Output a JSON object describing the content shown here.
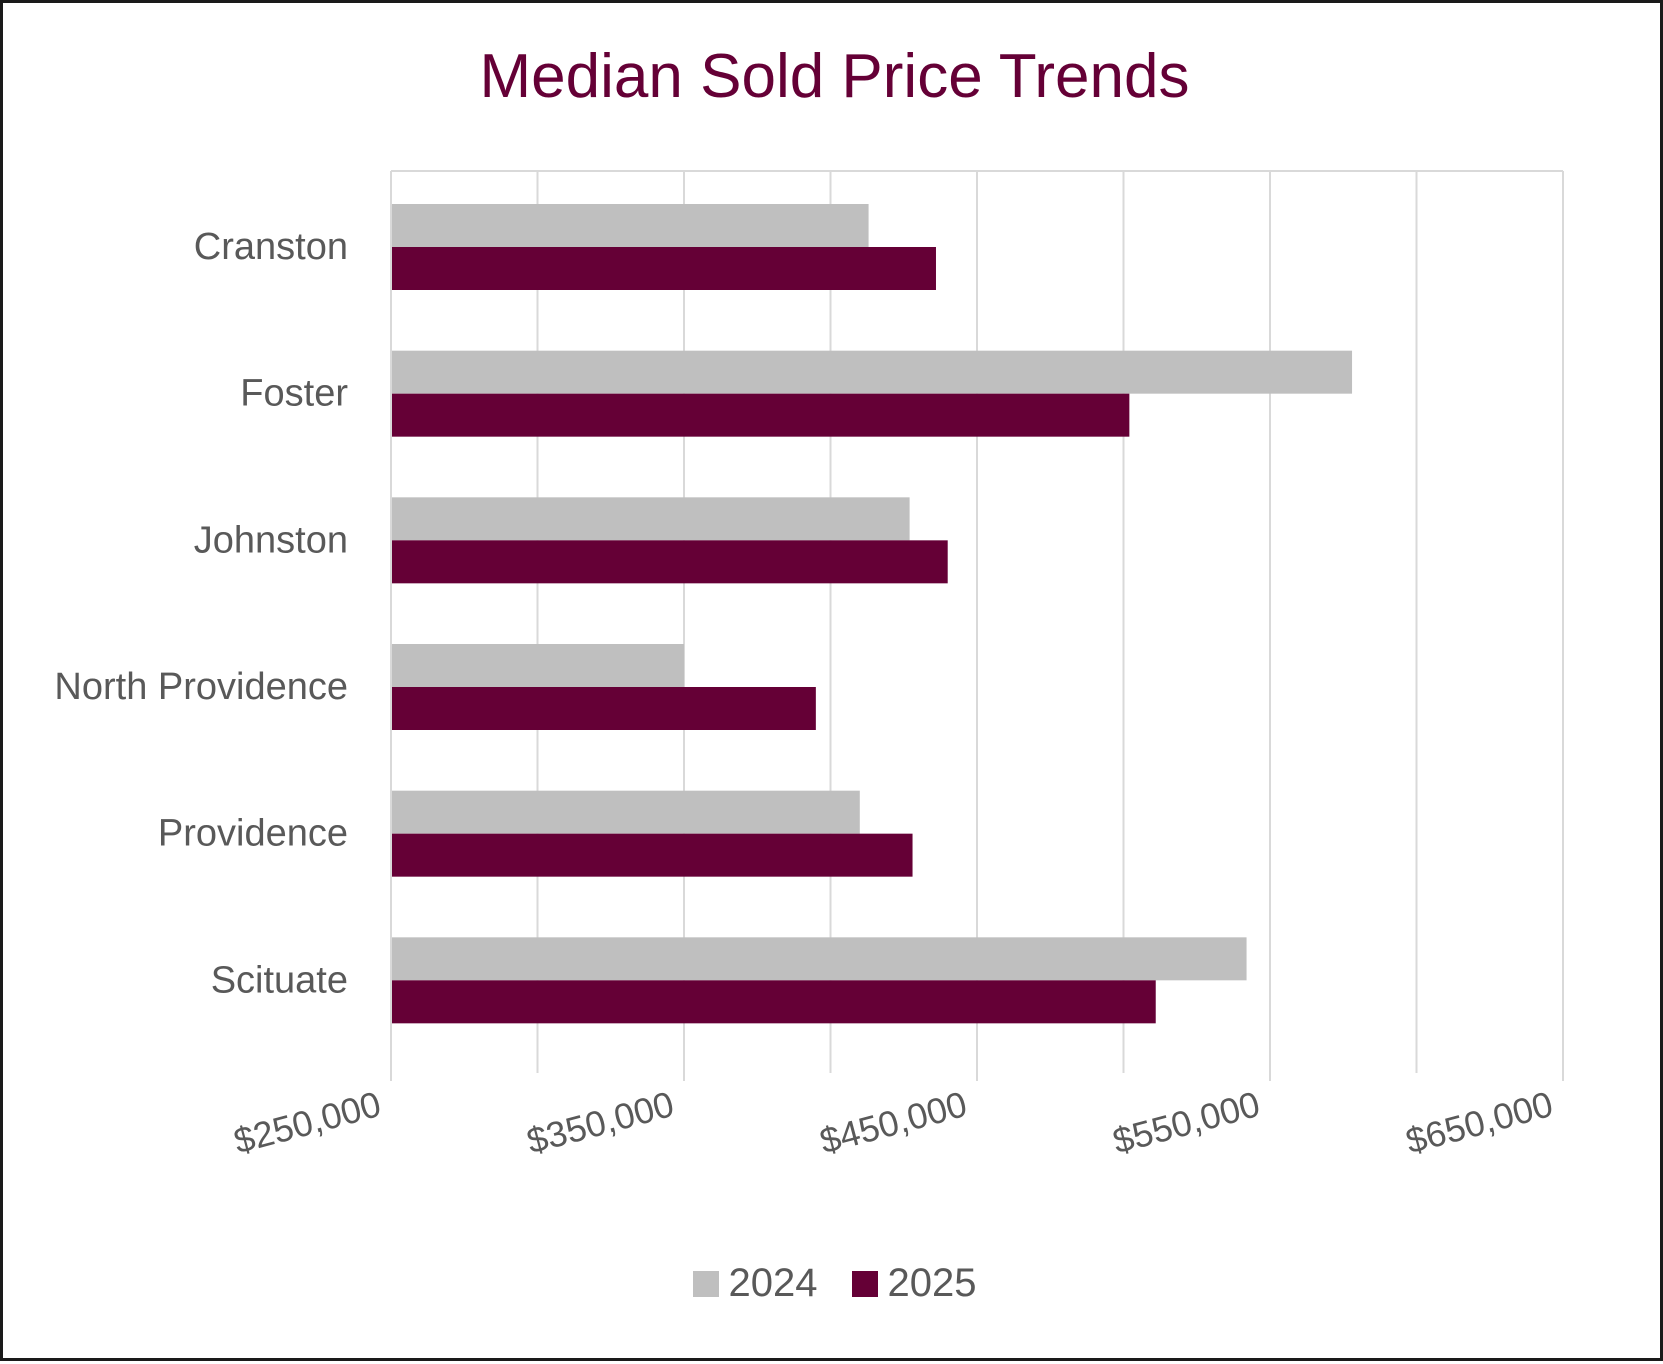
{
  "chart_data": {
    "type": "bar",
    "orientation": "horizontal",
    "title": "Median Sold Price Trends",
    "xlabel": "",
    "ylabel": "",
    "categories": [
      "Cranston",
      "Foster",
      "Johnston",
      "North Providence",
      "Providence",
      "Scituate"
    ],
    "series": [
      {
        "name": "2024",
        "color": "#bfbfbf",
        "values": [
          413000,
          578000,
          427000,
          350000,
          410000,
          542000
        ]
      },
      {
        "name": "2025",
        "color": "#650036",
        "values": [
          436000,
          502000,
          440000,
          395000,
          428000,
          511000
        ]
      }
    ],
    "xlim": [
      250000,
      650000
    ],
    "xticks": [
      "$250,000",
      "$350,000",
      "$450,000",
      "$550,000",
      "$650,000"
    ],
    "xtick_values": [
      250000,
      350000,
      450000,
      550000,
      650000
    ],
    "grid_step": 50000,
    "grid": true,
    "legend": "bottom"
  }
}
